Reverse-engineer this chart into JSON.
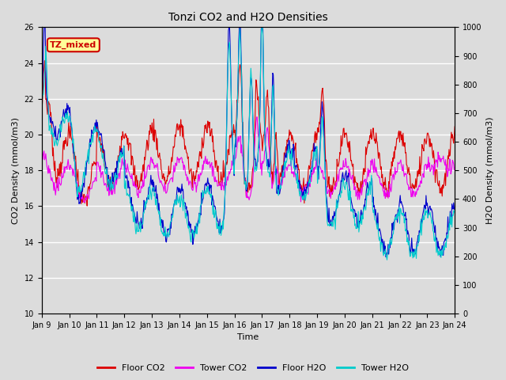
{
  "title": "Tonzi CO2 and H2O Densities",
  "xlabel": "Time",
  "ylabel_left": "CO2 Density (mmol/m3)",
  "ylabel_right": "H2O Density (mmol/m3)",
  "ylim_left": [
    10,
    26
  ],
  "ylim_right": [
    0,
    1000
  ],
  "bg_color": "#dcdcdc",
  "annotation_text": "TZ_mixed",
  "annotation_color": "#cc0000",
  "annotation_bg": "#ffff99",
  "annotation_border": "#cc0000",
  "legend_labels": [
    "Floor CO2",
    "Tower CO2",
    "Floor H2O",
    "Tower H2O"
  ],
  "legend_colors": [
    "#dd0000",
    "#ee00ee",
    "#0000cc",
    "#00cccc"
  ],
  "line_width": 0.8,
  "title_fontsize": 10,
  "tick_fontsize": 7,
  "label_fontsize": 8,
  "xtick_labels": [
    "Jan 9",
    "Jan 10",
    "Jan 11",
    "Jan 12",
    "Jan 13",
    "Jan 14",
    "Jan 15",
    "Jan 16",
    "Jan 17",
    "Jan 18",
    "Jan 19",
    "Jan 20",
    "Jan 21",
    "Jan 22",
    "Jan 23",
    "Jan 24"
  ]
}
